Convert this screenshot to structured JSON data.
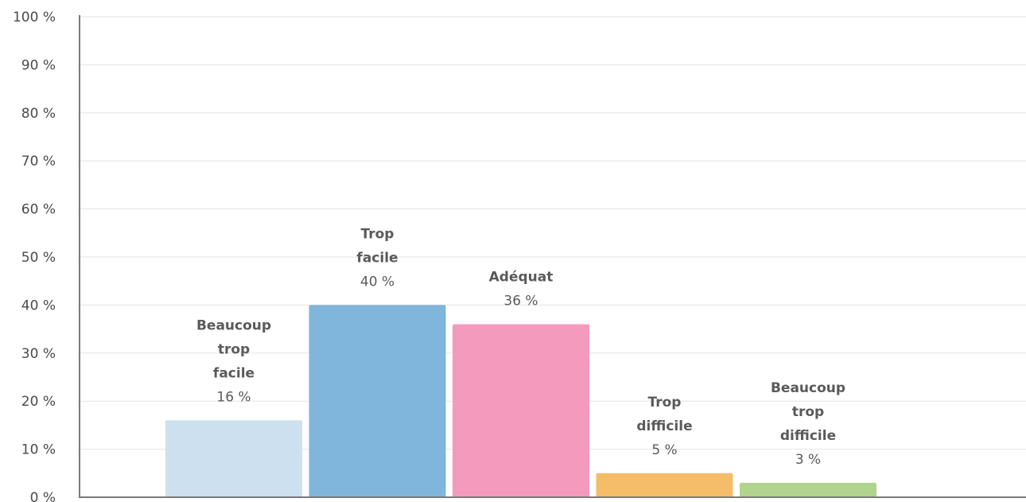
{
  "chart_data": {
    "type": "bar",
    "categories": [
      [
        "Beaucoup",
        "trop",
        "facile"
      ],
      [
        "Trop",
        "facile"
      ],
      [
        "Adéquat"
      ],
      [
        "Trop",
        "difficile"
      ],
      [
        "Beaucoup",
        "trop",
        "difficile"
      ]
    ],
    "values": [
      16,
      40,
      36,
      5,
      3
    ],
    "value_labels": [
      "16 %",
      "40 %",
      "36 %",
      "5 %",
      "3 %"
    ],
    "colors": [
      "#cce0ef",
      "#80b6db",
      "#f49bbd",
      "#f5bd69",
      "#b0d38e"
    ],
    "ylim": [
      0,
      100
    ],
    "yticks": [
      0,
      10,
      20,
      30,
      40,
      50,
      60,
      70,
      80,
      90,
      100
    ],
    "ytick_labels": [
      "0 %",
      "10 %",
      "20 %",
      "30 %",
      "40 %",
      "50 %",
      "60 %",
      "70 %",
      "80 %",
      "90 %",
      "100 %"
    ],
    "grid": true,
    "title": "",
    "xlabel": "",
    "ylabel": ""
  }
}
